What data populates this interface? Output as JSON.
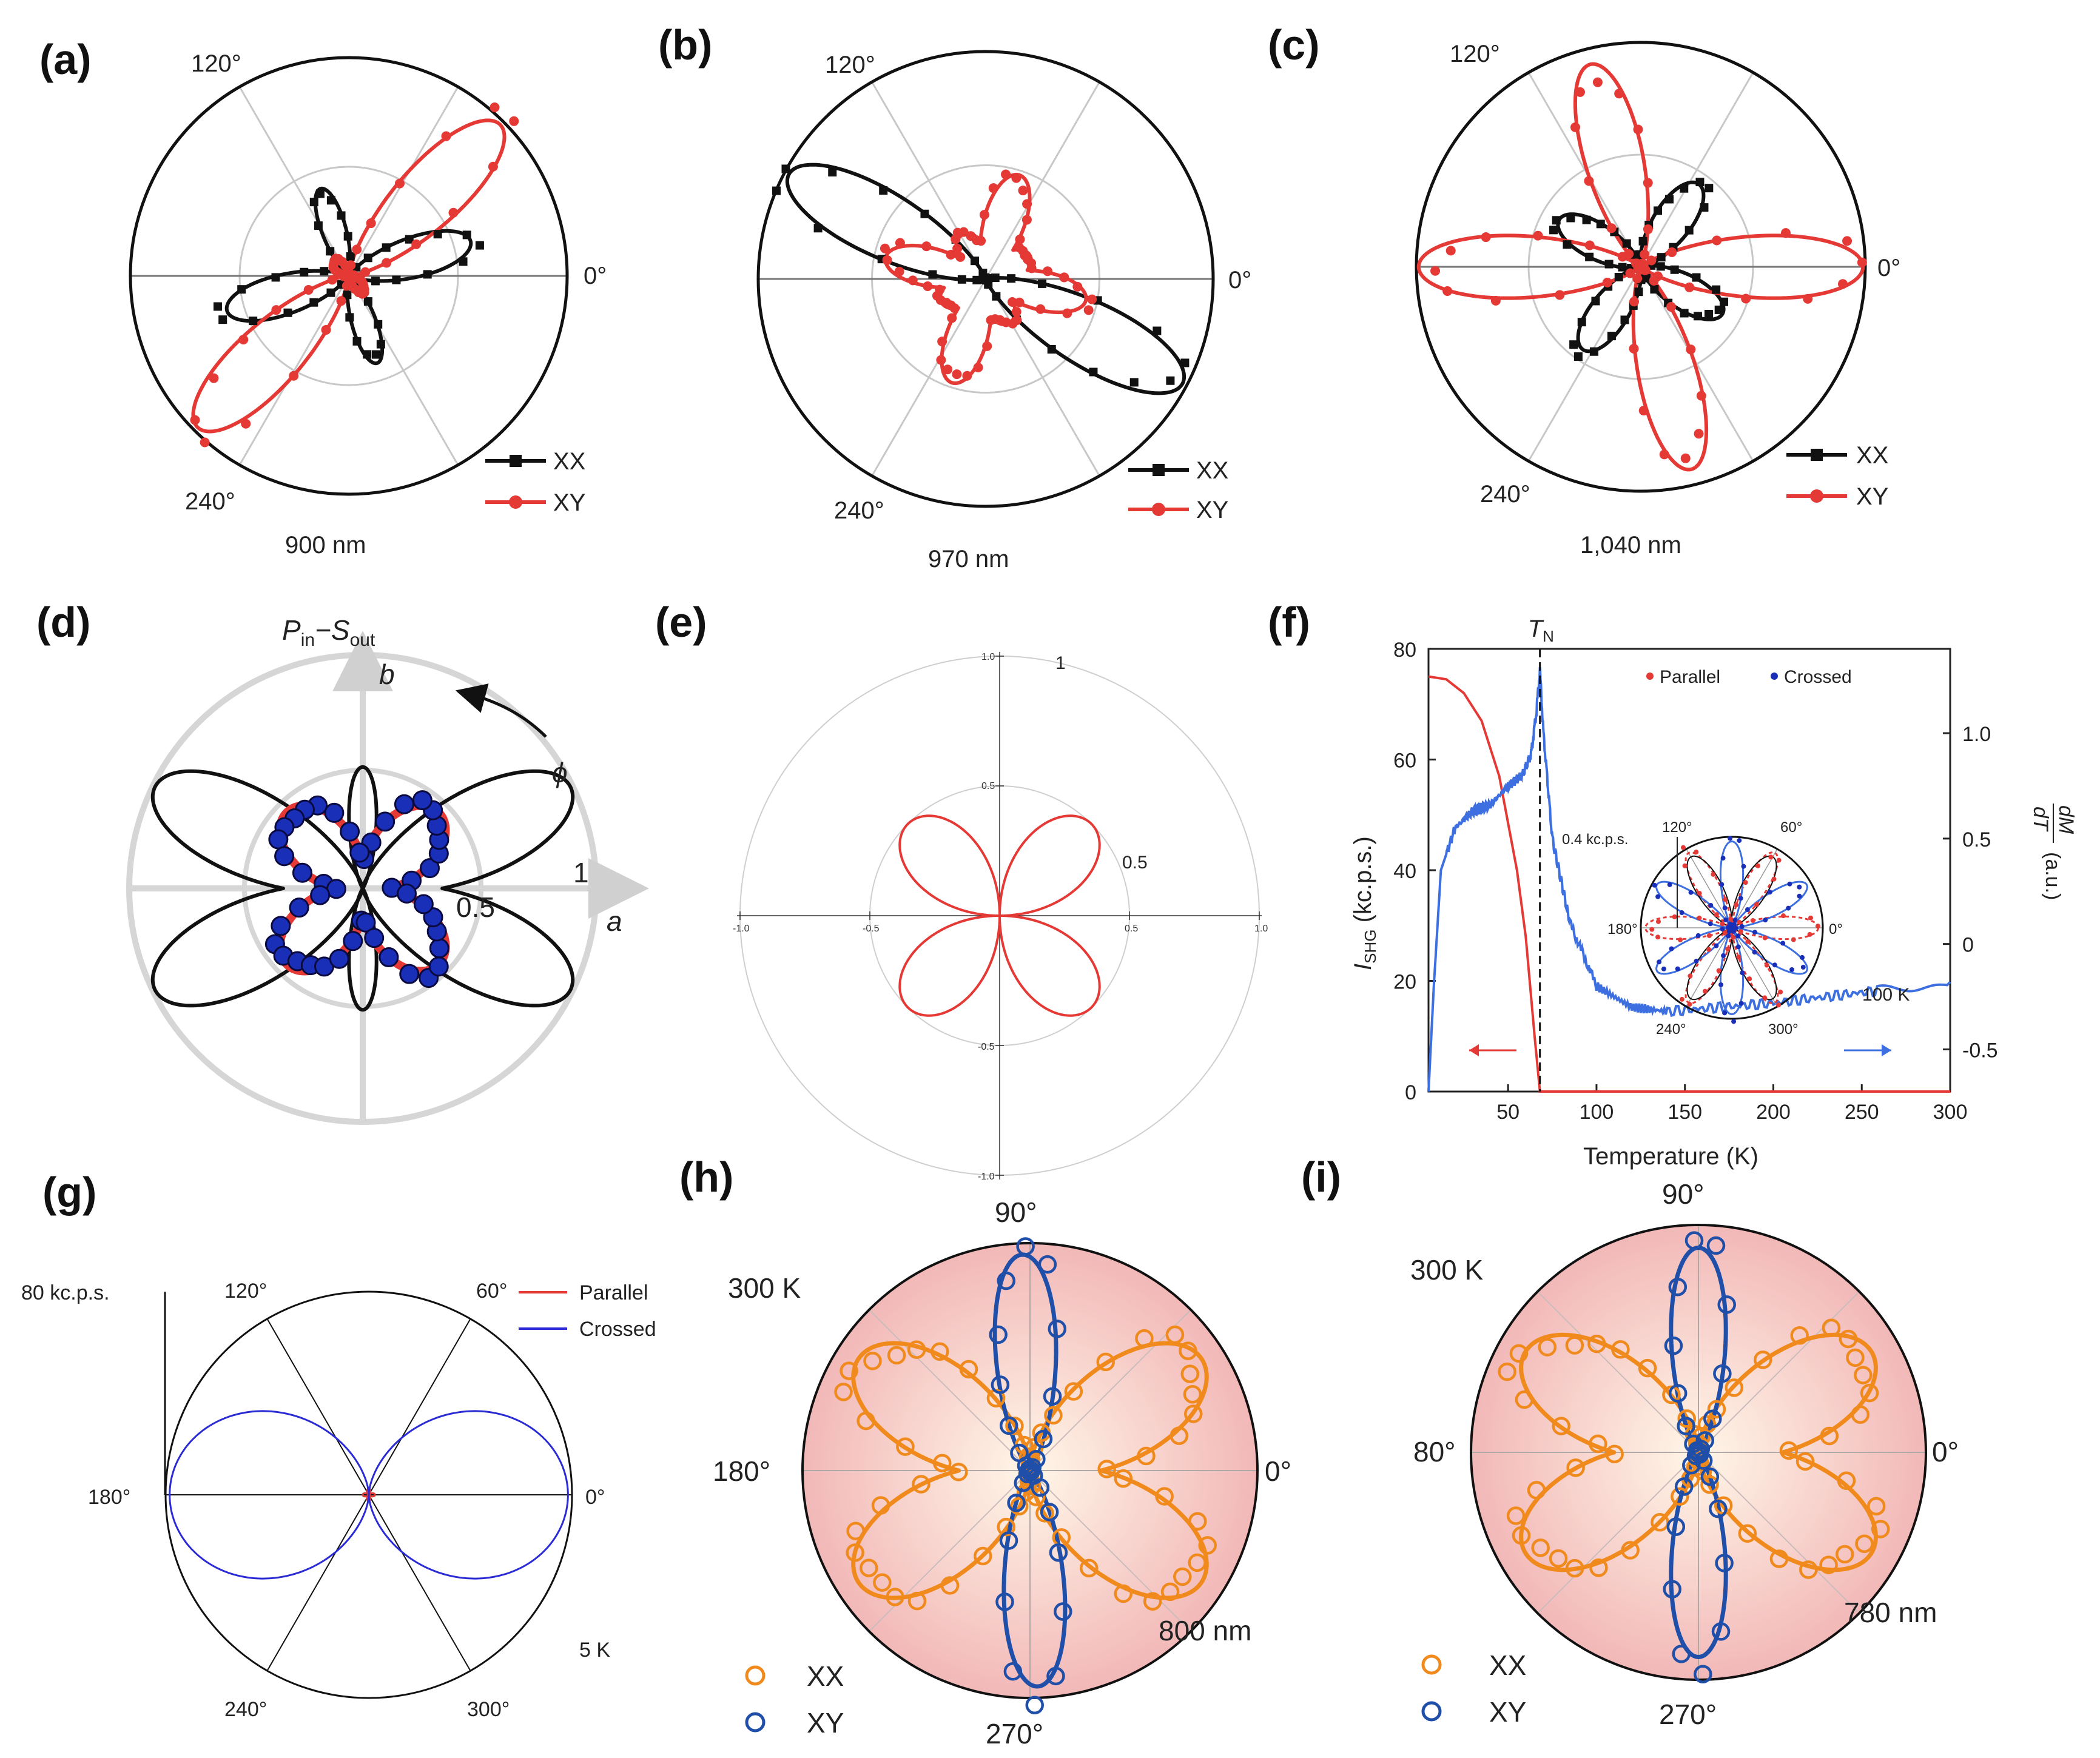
{
  "figure": {
    "panel_labels": [
      "(a)",
      "(b)",
      "(c)",
      "(d)",
      "(e)",
      "(f)",
      "(g)",
      "(h)",
      "(i)"
    ]
  },
  "colors": {
    "red": "#e53935",
    "black": "#111111",
    "blue_dot": "#1a2fb8",
    "blue_line": "#3d6fe0",
    "orange": "#f08a1c",
    "navy": "#1f4fa8",
    "grid": "#c8c8c8",
    "pink_bg": "#f4c2c2"
  },
  "chart_data": [
    {
      "id": "a",
      "type": "polar-line",
      "angle_labels": [
        "120°",
        "0°",
        "240°"
      ],
      "caption": "900 nm",
      "legend": [
        "XX",
        "XY"
      ],
      "series": [
        {
          "name": "XX",
          "model": "four-lobe",
          "orientation_deg": [
            16,
            108
          ],
          "amplitude": [
            0.55,
            0.42
          ],
          "width": [
            0.16,
            0.13
          ]
        },
        {
          "name": "XY",
          "model": "two-lobe",
          "orientation_deg": 45,
          "amplitude": 1.0,
          "width": 0.15,
          "inner_amplitude": 0.12
        }
      ]
    },
    {
      "id": "b",
      "type": "polar-line",
      "angle_labels": [
        "120°",
        "0°",
        "240°"
      ],
      "caption": "970 nm",
      "legend": [
        "XX",
        "XY"
      ],
      "series": [
        {
          "name": "XX",
          "model": "two-lobe",
          "orientation_deg": 150,
          "amplitude": 1.0,
          "width": 0.16
        },
        {
          "name": "XY",
          "model": "four-lobe",
          "orientation_deg": [
            75,
            165
          ],
          "amplitude": [
            0.5,
            0.46
          ],
          "width": [
            0.22,
            0.22
          ]
        }
      ]
    },
    {
      "id": "c",
      "type": "polar-line",
      "angle_labels": [
        "120°",
        "0°",
        "240°"
      ],
      "caption": "1,040 nm",
      "legend": [
        "XX",
        "XY"
      ],
      "series": [
        {
          "name": "XX",
          "model": "four-lobe",
          "orientation_deg": [
            58,
            150
          ],
          "amplitude": [
            0.45,
            0.42
          ],
          "width": [
            0.2,
            0.2
          ]
        },
        {
          "name": "XY",
          "model": "four-lobe",
          "orientation_deg": [
            0,
            104
          ],
          "amplitude": [
            1.0,
            0.95
          ],
          "width": [
            0.14,
            0.14
          ]
        }
      ]
    },
    {
      "id": "d",
      "type": "polar-line",
      "title_main": "P",
      "title_sub_in": "in",
      "title_dash": "−S",
      "title_sub_out": "out",
      "axis_labels": [
        "b",
        "a",
        "ϕ"
      ],
      "radial_labels": [
        "0.5",
        "1"
      ],
      "series": [
        {
          "name": "model (black)",
          "model": "two four-lobe patterns",
          "orientation_deg": [
            [
              26,
              154
            ],
            [
              90
            ]
          ]
        },
        {
          "name": "fit (red)",
          "model": "four-lobe",
          "orientation_deg": [
            45,
            135
          ],
          "amplitude": 0.45
        },
        {
          "name": "data (blue)",
          "type": "scatter"
        }
      ]
    },
    {
      "id": "e",
      "type": "polar-line",
      "axis_ticks": [
        "1.0",
        "0.5",
        "-0.5",
        "-1.0",
        "-1.0",
        "-0.5",
        "0.5",
        "1.0"
      ],
      "radial_labels": [
        "1",
        "0.5"
      ],
      "series": [
        {
          "name": "fit",
          "model": "cos(2θ) four-leaf rose",
          "amplitude": 0.5,
          "orientation_deg": [
            45,
            135
          ]
        }
      ]
    },
    {
      "id": "f",
      "type": "line",
      "xlabel": "Temperature (K)",
      "ylabel_left_main": "I",
      "ylabel_left_sub": "SHG",
      "ylabel_left_unit": " (kc.p.s.)",
      "ylabel_right": "dM/dT (a.u.)",
      "ylabel_right_num": "dM",
      "ylabel_right_den": "dT",
      "ylabel_right_unit": "(a.u.)",
      "marker_main": "T",
      "marker_sub": "N",
      "marker_x": 68,
      "xlim": [
        5,
        300
      ],
      "ylim_left": [
        0,
        80
      ],
      "ylim_right": [
        -0.7,
        1.4
      ],
      "xticks": [
        "50",
        "100",
        "150",
        "200",
        "250",
        "300"
      ],
      "yticks_left": [
        "0",
        "20",
        "40",
        "60",
        "80"
      ],
      "yticks_right": [
        "-0.5",
        "0",
        "0.5",
        "1.0"
      ],
      "series": [
        {
          "name": "I_SHG",
          "axis": "left",
          "x": [
            5,
            15,
            25,
            35,
            45,
            55,
            60,
            65,
            68,
            300
          ],
          "y": [
            75,
            74.5,
            72,
            67,
            57,
            40,
            28,
            10,
            0,
            0
          ]
        },
        {
          "name": "dM/dT",
          "axis": "right",
          "x": [
            5,
            8,
            12,
            20,
            30,
            40,
            50,
            58,
            63,
            66,
            68,
            70,
            75,
            85,
            100,
            120,
            140,
            170,
            200,
            230,
            260,
            300
          ],
          "y": [
            -0.7,
            -0.2,
            0.35,
            0.55,
            0.63,
            0.66,
            0.75,
            0.8,
            0.9,
            1.1,
            1.3,
            1.0,
            0.5,
            0.1,
            -0.2,
            -0.3,
            -0.32,
            -0.3,
            -0.28,
            -0.25,
            -0.22,
            -0.18
          ]
        }
      ],
      "inset": {
        "legend": [
          "Parallel",
          "Crossed"
        ],
        "scale_label": "0.4 kc.p.s.",
        "angle_labels": [
          "120°",
          "60°",
          "180°",
          "0°",
          "240°",
          "300°"
        ],
        "temp_label": "100 K",
        "series": [
          {
            "name": "Parallel",
            "model": "six-lobe",
            "orientation_deg": [
              0,
              60,
              120
            ]
          },
          {
            "name": "Crossed",
            "model": "six-lobe",
            "orientation_deg": [
              30,
              90,
              150
            ]
          }
        ]
      }
    },
    {
      "id": "g",
      "type": "polar-line",
      "scale_label": "80 kc.p.s.",
      "angle_labels": [
        "120°",
        "60°",
        "180°",
        "0°",
        "240°",
        "300°"
      ],
      "temp_label": "5 K",
      "legend": [
        "Parallel",
        "Crossed"
      ],
      "series": [
        {
          "name": "Parallel",
          "amplitude": 0.03
        },
        {
          "name": "Crossed",
          "model": "two-lobe",
          "orientation_deg": 0,
          "amplitude": 0.98
        }
      ]
    },
    {
      "id": "h",
      "type": "polar-line",
      "angle_labels": [
        "90°",
        "180°",
        "0°",
        "270°"
      ],
      "temp_label": "300 K",
      "caption": "800 nm",
      "legend": [
        "XX",
        "XY"
      ],
      "series": [
        {
          "name": "XX",
          "model": "four-lobe",
          "orientation_deg": [
            32,
            148
          ],
          "amplitude": [
            0.9,
            0.9
          ]
        },
        {
          "name": "XY",
          "model": "two-lobe",
          "orientation_deg": 90,
          "amplitude": 0.95
        }
      ]
    },
    {
      "id": "i",
      "type": "polar-line",
      "angle_labels": [
        "90°",
        "80°",
        "0°",
        "270°"
      ],
      "temp_label": "300 K",
      "caption": "780 nm",
      "legend": [
        "XX",
        "XY"
      ],
      "series": [
        {
          "name": "XX",
          "model": "four-lobe",
          "orientation_deg": [
            30,
            150
          ],
          "amplitude": [
            0.88,
            0.88
          ]
        },
        {
          "name": "XY",
          "model": "two-lobe",
          "orientation_deg": 90,
          "amplitude": 0.9
        }
      ]
    }
  ]
}
